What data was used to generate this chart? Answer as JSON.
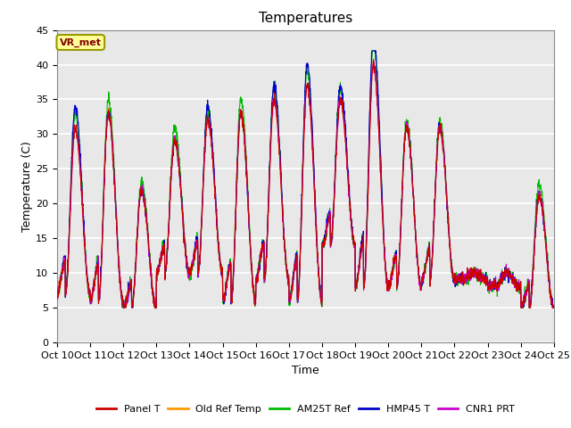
{
  "title": "Temperatures",
  "xlabel": "Time",
  "ylabel": "Temperature (C)",
  "ylim": [
    0,
    45
  ],
  "xlim": [
    0,
    15
  ],
  "xtick_labels": [
    "Oct 10",
    "Oct 11",
    "Oct 12",
    "Oct 13",
    "Oct 14",
    "Oct 15",
    "Oct 16",
    "Oct 17",
    "Oct 18",
    "Oct 19",
    "Oct 20",
    "Oct 21",
    "Oct 22",
    "Oct 23",
    "Oct 24",
    "Oct 25"
  ],
  "legend_labels": [
    "Panel T",
    "Old Ref Temp",
    "AM25T Ref",
    "HMP45 T",
    "CNR1 PRT"
  ],
  "line_colors": [
    "#cc0000",
    "#ff9900",
    "#00bb00",
    "#0000cc",
    "#cc00cc"
  ],
  "annotation_text": "VR_met",
  "annotation_facecolor": "#ffff99",
  "annotation_edgecolor": "#999900",
  "annotation_textcolor": "#880000",
  "plot_bg_color": "#e8e8e8",
  "grid_color": "#ffffff",
  "title_fontsize": 11,
  "axis_fontsize": 9,
  "tick_fontsize": 8,
  "n_points": 2160,
  "day_peaks": [
    31,
    33,
    22,
    29,
    32,
    33,
    35,
    37,
    35,
    40,
    31,
    31,
    10,
    10,
    21
  ],
  "day_mins": [
    7,
    6,
    5,
    10,
    10,
    6,
    9,
    6,
    14,
    8,
    8,
    9,
    9,
    8,
    5
  ],
  "am25t_extra": [
    2,
    2,
    1,
    2,
    1.5,
    2,
    2,
    2,
    1.5,
    3,
    1,
    1,
    0,
    0,
    2
  ],
  "hmp45_extra": [
    3,
    0,
    0,
    0,
    2,
    0,
    2,
    3,
    2,
    4,
    0,
    0,
    0,
    0,
    0
  ]
}
